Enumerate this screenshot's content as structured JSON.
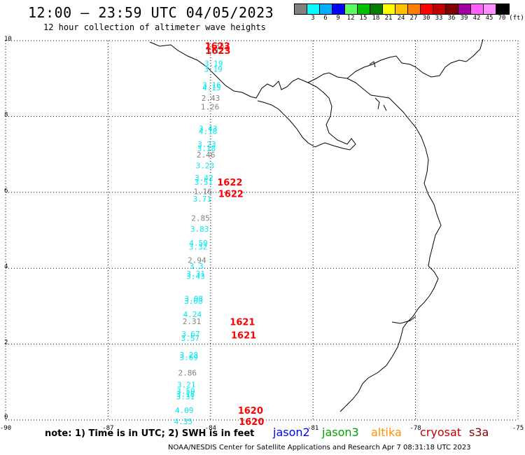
{
  "header": {
    "title": "12:00 — 23:59 UTC 04/05/2023",
    "subtitle": "12 hour collection of altimeter wave heights",
    "unit_label": "(ft)"
  },
  "legend": {
    "colors": [
      "#808080",
      "#00ffff",
      "#00b0ff",
      "#0000ff",
      "#60ff60",
      "#00c000",
      "#008000",
      "#ffff00",
      "#ffc000",
      "#ff8000",
      "#ff0000",
      "#c00000",
      "#800000",
      "#a000a0",
      "#ff60ff",
      "#ff90ff",
      "#000000"
    ],
    "labels": [
      "",
      "3",
      "6",
      "9",
      "12",
      "15",
      "18",
      "21",
      "24",
      "27",
      "30",
      "33",
      "36",
      "39",
      "42",
      "45",
      "70"
    ]
  },
  "axes": {
    "x_ticks": [
      "-90",
      "-87",
      "-84",
      "-81",
      "-78",
      "-75"
    ],
    "y_ticks": [
      "10",
      "8",
      "6",
      "4",
      "2",
      "0"
    ]
  },
  "observations": [
    {
      "lat": 9.86,
      "value": "2.35",
      "color": "#808080"
    },
    {
      "lat": 9.74,
      "value": "3.17",
      "color": "#00e8f0"
    },
    {
      "lat": 9.4,
      "value": "3.19",
      "color": "#00e8f0"
    },
    {
      "lat": 9.25,
      "value": "3.19",
      "color": "#00e8f0"
    },
    {
      "lat": 8.83,
      "value": "3.16",
      "color": "#00e8f0"
    },
    {
      "lat": 8.76,
      "value": "4.15",
      "color": "#00e8f0"
    },
    {
      "lat": 8.49,
      "value": "2.43",
      "color": "#808080"
    },
    {
      "lat": 8.26,
      "value": "1.26",
      "color": "#808080"
    },
    {
      "lat": 7.68,
      "value": "3.43",
      "color": "#00e8f0"
    },
    {
      "lat": 7.61,
      "value": "4.18",
      "color": "#00e8f0"
    },
    {
      "lat": 7.27,
      "value": "3.23",
      "color": "#00e8f0"
    },
    {
      "lat": 7.16,
      "value": "3.18",
      "color": "#00e8f0"
    },
    {
      "lat": 6.99,
      "value": "2.46",
      "color": "#808080"
    },
    {
      "lat": 6.71,
      "value": "3.23",
      "color": "#00e8f0"
    },
    {
      "lat": 6.38,
      "value": "3.42",
      "color": "#00e8f0"
    },
    {
      "lat": 6.27,
      "value": "3.51",
      "color": "#00e8f0"
    },
    {
      "lat": 6.02,
      "value": "1.16",
      "color": "#808080"
    },
    {
      "lat": 5.83,
      "value": "3.71",
      "color": "#00e8f0"
    },
    {
      "lat": 5.32,
      "value": "2.85",
      "color": "#808080"
    },
    {
      "lat": 5.04,
      "value": "3.83",
      "color": "#00e8f0"
    },
    {
      "lat": 4.67,
      "value": "4.59",
      "color": "#00e8f0"
    },
    {
      "lat": 4.57,
      "value": "3.32",
      "color": "#00e8f0"
    },
    {
      "lat": 4.22,
      "value": "2.94",
      "color": "#808080"
    },
    {
      "lat": 4.06,
      "value": "3.3",
      "color": "#00e8f0"
    },
    {
      "lat": 3.86,
      "value": "3.31",
      "color": "#00e8f0"
    },
    {
      "lat": 3.79,
      "value": "3.43",
      "color": "#00e8f0"
    },
    {
      "lat": 3.2,
      "value": "3.08",
      "color": "#00e8f0"
    },
    {
      "lat": 3.14,
      "value": "3.08",
      "color": "#00e8f0"
    },
    {
      "lat": 2.79,
      "value": "4.24",
      "color": "#00e8f0"
    },
    {
      "lat": 2.6,
      "value": "2.31",
      "color": "#808080"
    },
    {
      "lat": 2.27,
      "value": "3.67",
      "color": "#00e8f0"
    },
    {
      "lat": 2.16,
      "value": "3.57",
      "color": "#00e8f0"
    },
    {
      "lat": 1.72,
      "value": "3.28",
      "color": "#00e8f0"
    },
    {
      "lat": 1.65,
      "value": "3.69",
      "color": "#00e8f0"
    },
    {
      "lat": 1.25,
      "value": "2.86",
      "color": "#808080"
    },
    {
      "lat": 0.93,
      "value": "3.21",
      "color": "#00e8f0"
    },
    {
      "lat": 0.77,
      "value": "3.59",
      "color": "#00e8f0"
    },
    {
      "lat": 0.68,
      "value": "3.18",
      "color": "#00e8f0"
    },
    {
      "lat": 0.62,
      "value": "3.31",
      "color": "#00e8f0"
    },
    {
      "lat": 0.26,
      "value": "4.09",
      "color": "#00e8f0"
    },
    {
      "lat": -0.04,
      "value": "4.35",
      "color": "#00e8f0"
    }
  ],
  "time_labels": [
    {
      "lat": 9.86,
      "text": "1623"
    },
    {
      "lat": 9.74,
      "text": "1623"
    },
    {
      "lat": 6.27,
      "text": "1622"
    },
    {
      "lat": 5.97,
      "text": "1622"
    },
    {
      "lat": 2.59,
      "text": "1621"
    },
    {
      "lat": 2.24,
      "text": "1621"
    },
    {
      "lat": 0.26,
      "text": "1620"
    },
    {
      "lat": -0.04,
      "text": "1620"
    }
  ],
  "footer": {
    "note": "note: 1) Time is in UTC; 2) SWH is in feet",
    "satellites": [
      {
        "name": "jason2",
        "color": "#0000ff"
      },
      {
        "name": "jason3",
        "color": "#00a000"
      },
      {
        "name": "altika",
        "color": "#ff9000"
      },
      {
        "name": "cryosat",
        "color": "#c00000"
      },
      {
        "name": "s3a",
        "color": "#800000"
      }
    ],
    "credit": "NOAA/NESDIS Center for Satellite Applications and Research   Apr  7 08:31:18 UTC 2023"
  }
}
